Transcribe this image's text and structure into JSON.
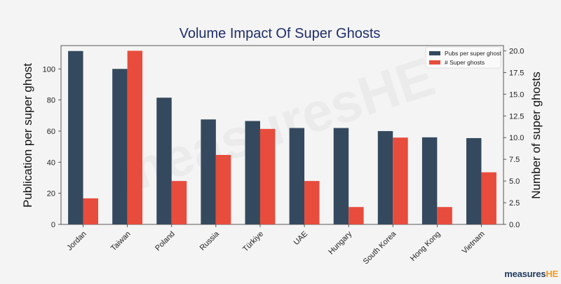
{
  "chart_data": {
    "type": "bar",
    "title": "Volume Impact Of Super Ghosts",
    "ylabel": "Publication per super ghost",
    "y2label": "Number of super ghosts",
    "categories": [
      "Jordan",
      "Taiwan",
      "Poland",
      "Russia",
      "Türkiye",
      "UAE",
      "Hungary",
      "South Korea",
      "Hong Kong",
      "Vietnam"
    ],
    "series": [
      {
        "name": "Pubs per super ghost",
        "axis": "left",
        "color": "#34495e",
        "values": [
          111.5,
          100,
          81.5,
          67.5,
          66.5,
          62,
          62,
          60,
          56,
          55.5
        ]
      },
      {
        "name": "# Super ghosts",
        "axis": "right",
        "color": "#e74c3c",
        "values": [
          3,
          20,
          5,
          8,
          11,
          5,
          2,
          10,
          2,
          6
        ]
      }
    ],
    "ylim": [
      0,
      115
    ],
    "y2lim": [
      0,
      20.6
    ],
    "yticks": [
      0,
      20,
      40,
      60,
      80,
      100
    ],
    "y2ticks": [
      "0.0",
      "2.5",
      "5.0",
      "7.5",
      "10.0",
      "12.5",
      "15.0",
      "17.5",
      "20.0"
    ],
    "legend_position": "top-right",
    "grid": false
  },
  "watermark": "measuresHE",
  "logo": {
    "main": "measures",
    "accent": "HE"
  }
}
